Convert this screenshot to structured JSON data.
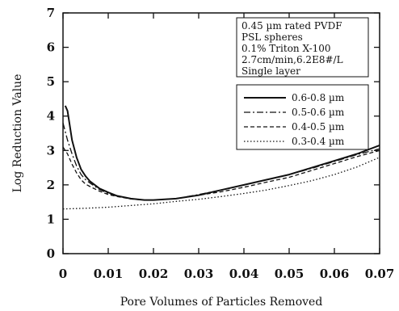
{
  "chart_data": {
    "type": "line",
    "title": "",
    "xlabel": "Pore Volumes of Particles Removed",
    "ylabel": "Log Reduction Value",
    "xlim": [
      0,
      0.07
    ],
    "ylim": [
      0,
      7
    ],
    "x_ticks": [
      0,
      0.01,
      0.02,
      0.03,
      0.04,
      0.05,
      0.06,
      0.07
    ],
    "x_tick_labels": [
      "0",
      "0.01",
      "0.02",
      "0.03",
      "0.04",
      "0.05",
      "0.06",
      "0.07"
    ],
    "y_ticks": [
      0,
      1,
      2,
      3,
      4,
      5,
      6,
      7
    ],
    "y_tick_labels": [
      "0",
      "1",
      "2",
      "3",
      "4",
      "5",
      "6",
      "7"
    ],
    "grid": false,
    "legend_position": "right",
    "annotation_lines": [
      "0.45 µm rated PVDF",
      "PSL spheres",
      "0.1% Triton X-100",
      "2.7cm/min,6.2E8#/L",
      "Single layer"
    ],
    "series": [
      {
        "name": "0.6-0.8 µm",
        "style": "solid",
        "x": [
          0.0005,
          0.001,
          0.002,
          0.003,
          0.004,
          0.005,
          0.006,
          0.008,
          0.01,
          0.012,
          0.015,
          0.018,
          0.02,
          0.025,
          0.03,
          0.035,
          0.04,
          0.045,
          0.05,
          0.055,
          0.06,
          0.065,
          0.07
        ],
        "y": [
          4.3,
          4.15,
          3.3,
          2.8,
          2.45,
          2.25,
          2.1,
          1.9,
          1.78,
          1.68,
          1.6,
          1.56,
          1.56,
          1.6,
          1.7,
          1.85,
          2.0,
          2.15,
          2.3,
          2.5,
          2.7,
          2.9,
          3.15
        ]
      },
      {
        "name": "0.5-0.6 µm",
        "style": "dash-dot",
        "x": [
          0.0,
          0.001,
          0.002,
          0.003,
          0.004,
          0.005,
          0.006,
          0.008,
          0.01,
          0.012,
          0.015,
          0.018,
          0.02,
          0.025,
          0.03,
          0.035,
          0.04,
          0.045,
          0.05,
          0.055,
          0.06,
          0.065,
          0.07
        ],
        "y": [
          3.8,
          3.3,
          2.9,
          2.55,
          2.3,
          2.15,
          2.05,
          1.87,
          1.75,
          1.67,
          1.6,
          1.56,
          1.56,
          1.6,
          1.72,
          1.85,
          2.0,
          2.15,
          2.3,
          2.48,
          2.68,
          2.88,
          3.05
        ]
      },
      {
        "name": "0.4-0.5 µm",
        "style": "dashed",
        "x": [
          0.0,
          0.001,
          0.002,
          0.003,
          0.004,
          0.005,
          0.006,
          0.008,
          0.01,
          0.012,
          0.015,
          0.018,
          0.02,
          0.025,
          0.03,
          0.035,
          0.04,
          0.045,
          0.05,
          0.055,
          0.06,
          0.065,
          0.07
        ],
        "y": [
          3.1,
          2.9,
          2.6,
          2.35,
          2.15,
          2.02,
          1.95,
          1.82,
          1.72,
          1.66,
          1.59,
          1.56,
          1.56,
          1.6,
          1.7,
          1.8,
          1.93,
          2.08,
          2.22,
          2.42,
          2.62,
          2.82,
          3.0
        ]
      },
      {
        "name": "0.3-0.4 µm",
        "style": "dotted",
        "x": [
          0.0,
          0.005,
          0.01,
          0.015,
          0.02,
          0.025,
          0.03,
          0.035,
          0.04,
          0.045,
          0.05,
          0.055,
          0.06,
          0.065,
          0.07
        ],
        "y": [
          1.3,
          1.32,
          1.35,
          1.4,
          1.45,
          1.52,
          1.58,
          1.66,
          1.75,
          1.85,
          1.98,
          2.12,
          2.3,
          2.52,
          2.8
        ]
      }
    ]
  }
}
